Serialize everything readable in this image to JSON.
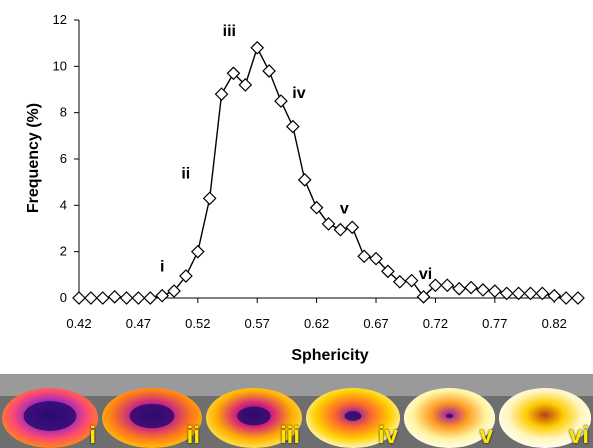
{
  "chart_data": {
    "type": "line",
    "xlabel": "Sphericity",
    "ylabel": "Frequency (%)",
    "xlim": [
      0.42,
      0.84
    ],
    "ylim": [
      0,
      12
    ],
    "x_ticks": [
      "0.42",
      "0.47",
      "0.52",
      "0.57",
      "0.62",
      "0.67",
      "0.72",
      "0.77",
      "0.82"
    ],
    "y_ticks": [
      "0",
      "2",
      "4",
      "6",
      "8",
      "10",
      "12"
    ],
    "grid": false,
    "marker": "open-diamond",
    "series": [
      {
        "x": [
          0.42,
          0.43,
          0.44,
          0.45,
          0.46,
          0.47,
          0.48,
          0.49,
          0.5,
          0.51,
          0.52,
          0.53,
          0.54,
          0.55,
          0.56,
          0.57,
          0.58,
          0.59,
          0.6,
          0.61,
          0.62,
          0.63,
          0.64,
          0.65,
          0.66,
          0.67,
          0.68,
          0.69,
          0.7,
          0.71,
          0.72,
          0.73,
          0.74,
          0.75,
          0.76,
          0.77,
          0.78,
          0.79,
          0.8,
          0.81,
          0.82,
          0.83,
          0.84
        ],
        "y": [
          0.0,
          0.0,
          0.0,
          0.05,
          0.0,
          0.0,
          0.0,
          0.1,
          0.3,
          0.95,
          2.0,
          4.3,
          8.8,
          9.7,
          9.2,
          10.8,
          9.8,
          8.5,
          7.4,
          5.1,
          3.9,
          3.2,
          2.95,
          3.05,
          1.8,
          1.7,
          1.15,
          0.7,
          0.75,
          0.05,
          0.55,
          0.55,
          0.4,
          0.45,
          0.35,
          0.3,
          0.2,
          0.2,
          0.2,
          0.2,
          0.1,
          0.0,
          0.0
        ]
      }
    ],
    "annotations": [
      {
        "text": "i",
        "x": 0.49,
        "y": 0.1
      },
      {
        "text": "ii",
        "x": 0.52,
        "y": 4.3
      },
      {
        "text": "iii",
        "x": 0.56,
        "y": 10.8
      },
      {
        "text": "iv",
        "x": 0.59,
        "y": 8.5
      },
      {
        "text": "v",
        "x": 0.64,
        "y": 2.95
      },
      {
        "text": "vi",
        "x": 0.71,
        "y": 0.05
      }
    ]
  },
  "shape_panels": [
    {
      "label": "i",
      "colors": [
        "#ff9a00",
        "#ff4d6d",
        "#8a1fd0",
        "#2a0a8c"
      ]
    },
    {
      "label": "ii",
      "colors": [
        "#ffd200",
        "#ff7a1a",
        "#c21f8f",
        "#3b0a9c"
      ]
    },
    {
      "label": "iii",
      "colors": [
        "#fff06a",
        "#ffb000",
        "#d8247a",
        "#3a0aa0"
      ]
    },
    {
      "label": "iv",
      "colors": [
        "#ffffff",
        "#ffd200",
        "#ff6a2a",
        "#7a10c0"
      ]
    },
    {
      "label": "v",
      "colors": [
        "#ffffff",
        "#fff4a0",
        "#ff9a20",
        "#9a18b0"
      ]
    },
    {
      "label": "vi",
      "colors": [
        "#ffffff",
        "#fff6c0",
        "#ffcc00",
        "#b84010"
      ]
    }
  ]
}
